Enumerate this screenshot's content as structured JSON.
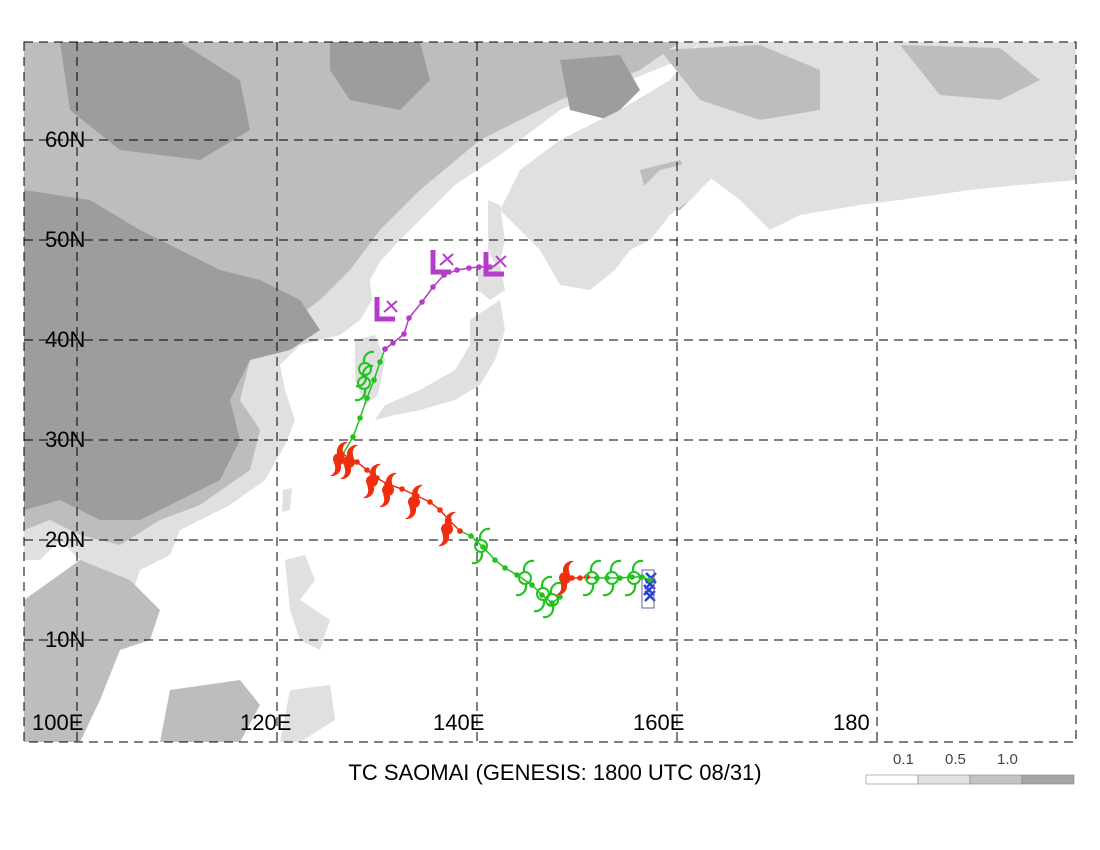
{
  "caption": "TC SAOMAI (GENESIS: 1800 UTC 08/31)",
  "lat_labels": [
    "60N",
    "50N",
    "40N",
    "30N",
    "20N",
    "10N"
  ],
  "lon_labels": [
    "100E",
    "120E",
    "140E",
    "160E",
    "180"
  ],
  "legend": {
    "ticks": [
      "0.1",
      "0.5",
      "1.0"
    ],
    "colors": [
      "#ffffff",
      "#e2e2e2",
      "#c4c4c4",
      "#a4a4a4"
    ]
  },
  "colors": {
    "tropical_storm": "#22c21f",
    "typhoon": "#ef2e10",
    "extratropical": "#b43cc8",
    "genesis": "#2d3fd6",
    "land_light": "#e0e0e0",
    "land_mid": "#bdbdbd",
    "land_dark": "#9d9d9d"
  },
  "track": {
    "genesis": [
      [
        157.4,
        16.2
      ],
      [
        157.3,
        15.6
      ],
      [
        157.2,
        15.0
      ],
      [
        157.3,
        14.4
      ]
    ],
    "segments": [
      {
        "stage": "tropical_storm",
        "points": [
          [
            157.3,
            16.0
          ],
          [
            156.5,
            16.3
          ],
          [
            155.5,
            16.3
          ],
          [
            154.3,
            16.2
          ],
          [
            153.0,
            16.2
          ],
          [
            152.0,
            16.2
          ],
          [
            151.0,
            16.3
          ]
        ]
      },
      {
        "stage": "typhoon",
        "points": [
          [
            151.0,
            16.3
          ],
          [
            150.3,
            16.2
          ],
          [
            149.5,
            16.2
          ],
          [
            148.7,
            16.0
          ]
        ]
      },
      {
        "stage": "tropical_storm",
        "points": [
          [
            148.7,
            16.0
          ],
          [
            148.3,
            14.3
          ],
          [
            147.5,
            13.7
          ],
          [
            146.5,
            14.5
          ],
          [
            145.5,
            15.5
          ],
          [
            144.0,
            16.5
          ],
          [
            142.8,
            17.2
          ],
          [
            141.8,
            18.0
          ],
          [
            140.6,
            19.3
          ],
          [
            139.4,
            20.4
          ],
          [
            138.3,
            20.9
          ]
        ]
      },
      {
        "stage": "typhoon",
        "points": [
          [
            138.3,
            20.9
          ],
          [
            137.2,
            22.0
          ],
          [
            136.3,
            23.0
          ],
          [
            135.3,
            23.8
          ],
          [
            134.0,
            24.4
          ],
          [
            132.5,
            25.1
          ],
          [
            131.0,
            25.6
          ],
          [
            130.0,
            26.2
          ],
          [
            129.0,
            27.0
          ],
          [
            128.0,
            27.8
          ],
          [
            127.3,
            28.2
          ],
          [
            126.5,
            28.6
          ],
          [
            126.2,
            28.1
          ]
        ]
      },
      {
        "stage": "tropical_storm",
        "points": [
          [
            126.3,
            28.1
          ],
          [
            127.6,
            30.3
          ],
          [
            128.3,
            32.2
          ],
          [
            129.0,
            34.2
          ],
          [
            129.7,
            36.0
          ],
          [
            130.3,
            37.8
          ],
          [
            130.8,
            39.1
          ]
        ]
      },
      {
        "stage": "extratropical",
        "points": [
          [
            130.8,
            39.1
          ],
          [
            131.6,
            39.7
          ],
          [
            132.7,
            40.6
          ],
          [
            133.2,
            42.2
          ],
          [
            134.5,
            43.8
          ],
          [
            135.6,
            45.3
          ],
          [
            136.7,
            46.5
          ],
          [
            138.0,
            47.0
          ],
          [
            139.2,
            47.2
          ],
          [
            140.2,
            47.3
          ],
          [
            141.3,
            47.3
          ]
        ]
      }
    ],
    "symbols": [
      {
        "type": "ts",
        "at": [
          155.7,
          16.2
        ]
      },
      {
        "type": "ts",
        "at": [
          153.5,
          16.2
        ]
      },
      {
        "type": "ts",
        "at": [
          151.5,
          16.2
        ]
      },
      {
        "type": "ty",
        "at": [
          148.8,
          16.2
        ]
      },
      {
        "type": "ts",
        "at": [
          147.5,
          14.0
        ]
      },
      {
        "type": "ts",
        "at": [
          146.6,
          14.6
        ]
      },
      {
        "type": "ts",
        "at": [
          144.8,
          16.2
        ]
      },
      {
        "type": "ts",
        "at": [
          140.4,
          19.4
        ]
      },
      {
        "type": "ty",
        "at": [
          137.0,
          21.1
        ]
      },
      {
        "type": "ty",
        "at": [
          133.7,
          23.8
        ]
      },
      {
        "type": "ty",
        "at": [
          131.1,
          25.0
        ]
      },
      {
        "type": "ty",
        "at": [
          129.5,
          25.9
        ]
      },
      {
        "type": "ty",
        "at": [
          127.2,
          27.8
        ]
      },
      {
        "type": "ty",
        "at": [
          126.2,
          28.1
        ]
      },
      {
        "type": "ts",
        "at": [
          128.7,
          35.7
        ]
      },
      {
        "type": "ts",
        "at": [
          128.8,
          37.1
        ]
      },
      {
        "type": "ex",
        "at": [
          130.8,
          42.7
        ]
      },
      {
        "type": "ex",
        "at": [
          136.4,
          47.4
        ]
      },
      {
        "type": "ex",
        "at": [
          141.7,
          47.2
        ]
      }
    ]
  }
}
